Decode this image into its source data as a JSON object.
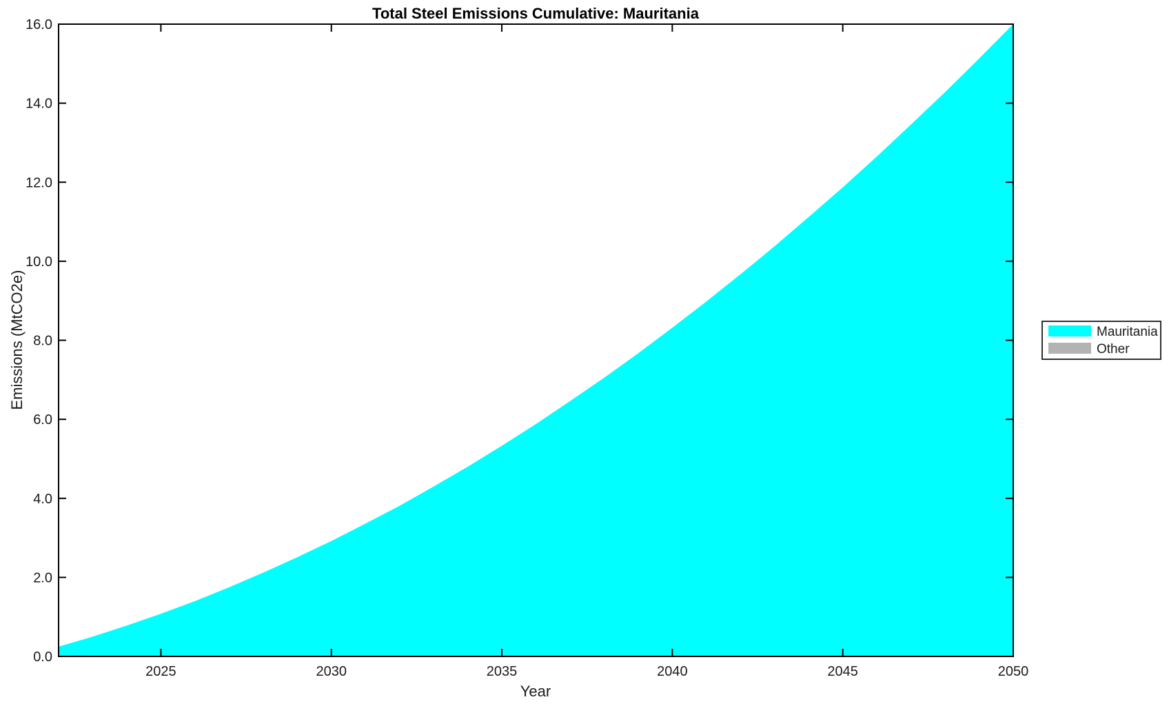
{
  "figure": {
    "background": "#ffffff"
  },
  "chart_data": {
    "type": "area",
    "title": "Total Steel Emissions Cumulative: Mauritania",
    "xlabel": "Year",
    "ylabel": "Emissions (MtCO2e)",
    "xlim": [
      2022,
      2050
    ],
    "ylim": [
      0.0,
      16.0
    ],
    "grid": false,
    "x_tick_values": [
      2025,
      2030,
      2035,
      2040,
      2045,
      2050
    ],
    "x_tick_labels": [
      "2025",
      "2030",
      "2035",
      "2040",
      "2045",
      "2050"
    ],
    "y_tick_values": [
      0,
      2,
      4,
      6,
      8,
      10,
      12,
      14,
      16
    ],
    "y_tick_labels": [
      "0.0",
      "2.0",
      "4.0",
      "6.0",
      "8.0",
      "10.0",
      "12.0",
      "14.0",
      "16.0"
    ],
    "x": [
      2022,
      2023,
      2024,
      2025,
      2026,
      2027,
      2028,
      2029,
      2030,
      2031,
      2032,
      2033,
      2034,
      2035,
      2036,
      2037,
      2038,
      2039,
      2040,
      2041,
      2042,
      2043,
      2044,
      2045,
      2046,
      2047,
      2048,
      2049,
      2050
    ],
    "series": [
      {
        "name": "Mauritania",
        "color": "#00ffff",
        "values": [
          0.25,
          0.5,
          0.78,
          1.08,
          1.4,
          1.75,
          2.12,
          2.51,
          2.92,
          3.36,
          3.81,
          4.3,
          4.8,
          5.33,
          5.88,
          6.46,
          7.05,
          7.67,
          8.32,
          8.98,
          9.67,
          10.38,
          11.12,
          11.87,
          12.65,
          13.46,
          14.28,
          15.13,
          16.0
        ]
      },
      {
        "name": "Other",
        "color": "#b3b3b3",
        "values": [
          0,
          0,
          0,
          0,
          0,
          0,
          0,
          0,
          0,
          0,
          0,
          0,
          0,
          0,
          0,
          0,
          0,
          0,
          0,
          0,
          0,
          0,
          0,
          0,
          0,
          0,
          0,
          0,
          0
        ]
      }
    ],
    "legend": {
      "position": "right-outside",
      "entries": [
        {
          "label": "Mauritania",
          "color": "#00ffff"
        },
        {
          "label": "Other",
          "color": "#b3b3b3"
        }
      ]
    },
    "axis_color": "#000000",
    "text_color": "#1a1a1a"
  }
}
